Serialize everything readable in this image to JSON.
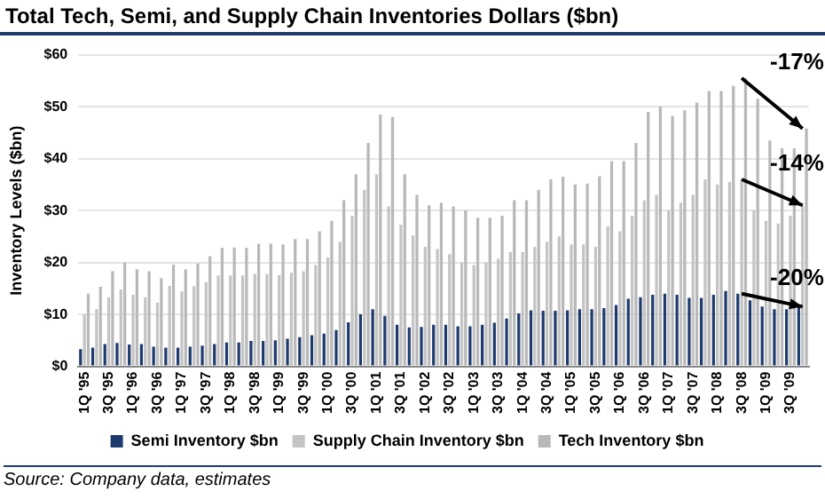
{
  "chart_data": {
    "type": "bar",
    "title": "Total Tech, Semi, and Supply Chain Inventories Dollars ($bn)",
    "ylabel": "Inventory Levels ($bn)",
    "categories": [
      "1Q '95",
      null,
      "3Q '95",
      null,
      "1Q '96",
      null,
      "3Q '96",
      null,
      "1Q '97",
      null,
      "3Q '97",
      null,
      "1Q '98",
      null,
      "3Q '98",
      null,
      "1Q '99",
      null,
      "3Q '99",
      null,
      "1Q '00",
      null,
      "3Q '00",
      null,
      "1Q '01",
      null,
      "3Q '01",
      null,
      "1Q '02",
      null,
      "3Q '02",
      null,
      "1Q '03",
      null,
      "3Q '03",
      null,
      "1Q '04",
      null,
      "3Q '04",
      null,
      "1Q '05",
      null,
      "3Q '05",
      null,
      "1Q '06",
      null,
      "3Q '06",
      null,
      "1Q '07",
      null,
      "3Q '07",
      null,
      "1Q '08",
      null,
      "3Q '08",
      null,
      "1Q '09",
      null,
      "3Q '09",
      null
    ],
    "series": [
      {
        "name": "Semi Inventory $bn",
        "color": "#1f3b6e",
        "values": [
          3.3,
          3.6,
          4.3,
          4.5,
          4.2,
          4.3,
          3.8,
          3.6,
          3.6,
          3.8,
          4.0,
          4.3,
          4.6,
          4.6,
          4.9,
          4.9,
          5.0,
          5.3,
          5.6,
          6.0,
          6.3,
          7.0,
          8.5,
          10.0,
          11.0,
          9.7,
          8.0,
          7.5,
          7.6,
          8.0,
          8.0,
          7.7,
          7.7,
          8.0,
          8.4,
          9.2,
          10.2,
          10.8,
          10.7,
          10.7,
          10.8,
          11.0,
          11.0,
          11.2,
          11.8,
          13.0,
          13.3,
          13.8,
          14.0,
          13.8,
          13.2,
          13.2,
          13.8,
          14.5,
          14.0,
          12.7,
          11.5,
          11.0,
          11.0,
          11.5
        ]
      },
      {
        "name": "Supply Chain Inventory $bn",
        "color": "#c4c4c4",
        "values": [
          10,
          11,
          13.3,
          14.8,
          13.8,
          13.3,
          12.3,
          15.5,
          14.4,
          15.4,
          16.2,
          17.5,
          17.5,
          17.5,
          17.8,
          17.8,
          17.6,
          18.0,
          18.3,
          19.5,
          21.0,
          24.0,
          29.0,
          34.0,
          37.0,
          30.8,
          27.3,
          25.2,
          23.0,
          22.6,
          21.6,
          20.0,
          19.5,
          20.0,
          20.7,
          22.0,
          22.0,
          23.0,
          24.0,
          25.0,
          23.5,
          23.5,
          23.0,
          27.0,
          26.0,
          29.0,
          32.0,
          33.0,
          30.0,
          31.5,
          33.0,
          36.0,
          35.0,
          35.5,
          36.0,
          30.0,
          28.0,
          27.5,
          29.0,
          31.0
        ]
      },
      {
        "name": "Tech Inventory $bn",
        "color": "#b8b8b8",
        "values": [
          14,
          15.3,
          18.3,
          20,
          18.7,
          18.3,
          17,
          19.6,
          18.7,
          19.8,
          21.2,
          22.8,
          22.9,
          22.8,
          23.6,
          23.6,
          23.5,
          24.5,
          24.5,
          26.0,
          28.0,
          32.0,
          37.0,
          43.0,
          48.5,
          48.0,
          37.0,
          33.0,
          31.0,
          31.5,
          30.8,
          30.0,
          28.6,
          28.6,
          29.0,
          32.0,
          32.0,
          34.0,
          36.0,
          36.5,
          35.0,
          35.2,
          36.6,
          39.5,
          39.5,
          43.0,
          49.0,
          50.0,
          48.2,
          49.3,
          50.8,
          53.0,
          53.0,
          54.0,
          55.5,
          51.5,
          43.5,
          42.0,
          42.0,
          45.8
        ]
      }
    ],
    "ylim": [
      0,
      60
    ],
    "yticks": [
      {
        "value": 0,
        "label": "$0"
      },
      {
        "value": 10,
        "label": "$10"
      },
      {
        "value": 20,
        "label": "$20"
      },
      {
        "value": 30,
        "label": "$30"
      },
      {
        "value": 40,
        "label": "$40"
      },
      {
        "value": 50,
        "label": "$50"
      },
      {
        "value": 60,
        "label": "$60"
      }
    ],
    "grid": "y",
    "legend": "bottom",
    "annotations": [
      {
        "text": "-17%",
        "x": "3Q '08",
        "y": 55.5
      },
      {
        "text": "-14%",
        "x": "3Q '08",
        "y": 36.0
      },
      {
        "text": "-20%",
        "x": "3Q '08",
        "y": 14.0
      },
      "Source: Company data, estimates"
    ]
  }
}
